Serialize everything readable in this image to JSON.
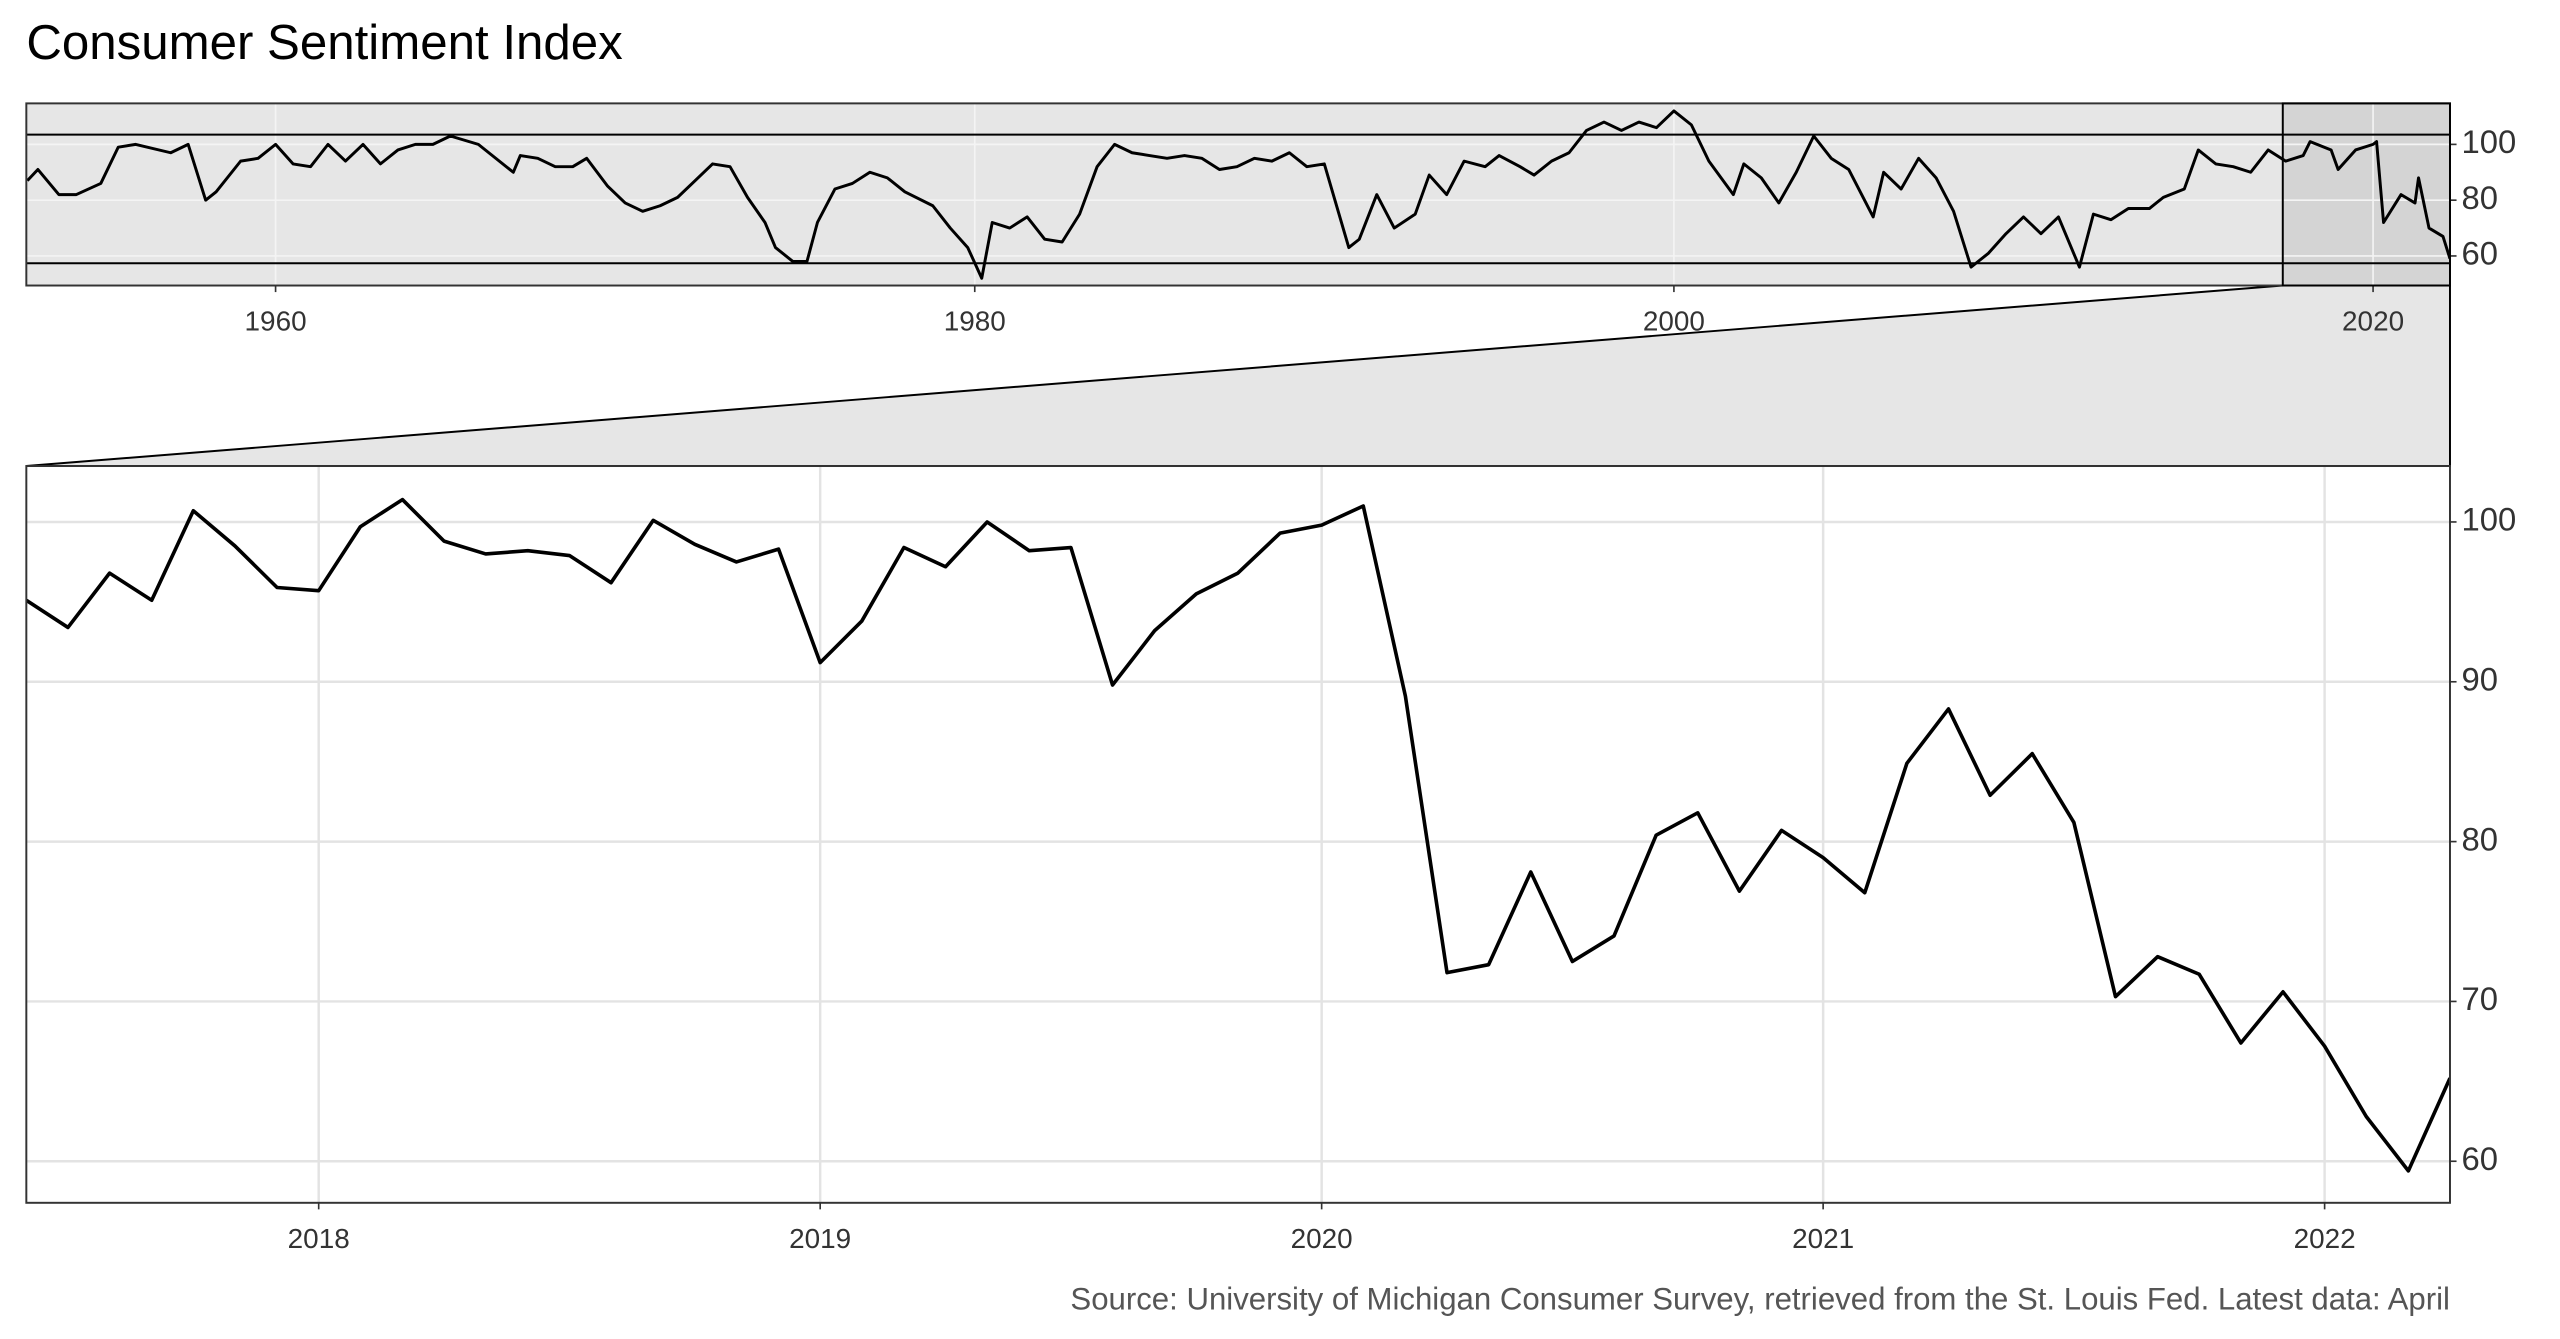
{
  "chart_data": [
    {
      "type": "line",
      "title": "Consumer Sentiment Index",
      "xlim": [
        1952.87,
        2022.2
      ],
      "xticks": [
        1960,
        1980,
        2000,
        2020
      ],
      "ylim": [
        49.4,
        114.7
      ],
      "yticks": [
        60,
        80,
        100
      ],
      "grid": true,
      "series": [
        {
          "name": "Consumer Sentiment",
          "color": "#000000",
          "x": [
            1952.9,
            1953.2,
            1953.8,
            1954.3,
            1955,
            1955.5,
            1956,
            1957,
            1957.5,
            1958,
            1958.3,
            1959,
            1959.5,
            1960,
            1960.5,
            1961,
            1961.5,
            1962,
            1962.5,
            1963,
            1963.5,
            1964,
            1964.5,
            1965,
            1965.8,
            1966.8,
            1967,
            1967.5,
            1968,
            1968.5,
            1968.9,
            1969.5,
            1970,
            1970.5,
            1971,
            1971.5,
            1972,
            1972.5,
            1973,
            1973.5,
            1974,
            1974.3,
            1974.8,
            1975.2,
            1975.5,
            1976,
            1976.5,
            1977,
            1977.5,
            1978,
            1978.8,
            1979.3,
            1979.8,
            1980.2,
            1980.5,
            1981,
            1981.5,
            1982,
            1982.5,
            1983,
            1983.5,
            1984,
            1984.5,
            1985,
            1985.5,
            1986,
            1986.5,
            1987,
            1987.5,
            1988,
            1988.5,
            1989,
            1989.5,
            1990,
            1990.7,
            1991,
            1991.5,
            1992,
            1992.6,
            1993,
            1993.5,
            1994,
            1994.6,
            1995,
            1995.6,
            1996,
            1996.5,
            1997,
            1997.5,
            1998,
            1998.5,
            1999,
            1999.5,
            2000,
            2000.5,
            2001,
            2001.7,
            2002,
            2002.5,
            2003,
            2003.5,
            2004,
            2004.5,
            2005,
            2005.7,
            2006,
            2006.5,
            2007,
            2007.5,
            2008,
            2008.5,
            2009,
            2009.5,
            2010,
            2010.5,
            2011,
            2011.6,
            2012,
            2012.5,
            2013,
            2013.6,
            2014,
            2014.6,
            2015,
            2015.5,
            2016,
            2016.5,
            2017,
            2017.5,
            2018,
            2018.2,
            2018.8,
            2019,
            2019.5,
            2020,
            2020.1,
            2020.3,
            2020.8,
            2021.2,
            2021.3,
            2021.6,
            2022,
            2022.2
          ],
          "values": [
            87,
            91,
            82,
            82,
            86,
            99,
            100,
            97,
            100,
            80,
            83,
            94,
            95,
            100,
            93,
            92,
            100,
            94,
            100,
            93,
            98,
            100,
            100,
            103,
            100,
            90,
            96,
            95,
            92,
            92,
            95,
            85,
            79,
            76,
            78,
            81,
            87,
            93,
            92,
            81,
            72,
            63,
            58,
            58,
            72,
            84,
            86,
            90,
            88,
            83,
            78,
            70,
            63,
            52,
            72,
            70,
            74,
            66,
            65,
            75,
            92,
            100,
            97,
            96,
            95,
            96,
            95,
            91,
            92,
            95,
            94,
            97,
            92,
            93,
            63,
            66,
            82,
            70,
            75,
            89,
            82,
            94,
            92,
            96,
            92,
            89,
            94,
            97,
            105,
            108,
            105,
            108,
            106,
            112,
            107,
            94,
            82,
            93,
            88,
            79,
            90,
            103,
            95,
            91,
            74,
            90,
            84,
            95,
            88,
            76,
            56,
            61,
            68,
            74,
            68,
            74,
            56,
            75,
            73,
            77,
            77,
            81,
            84,
            98,
            93,
            92,
            90,
            98,
            94,
            96,
            101,
            98,
            91,
            98,
            100,
            101,
            72,
            82,
            79,
            88,
            70,
            67,
            59
          ]
        }
      ]
    },
    {
      "type": "line",
      "caption": "Source: University of Michigan Consumer Survey, retrieved from the St. Louis Fed. Latest data: April",
      "xlim": [
        2017.417,
        2022.25
      ],
      "xticks": [
        2018,
        2019,
        2020,
        2021,
        2022
      ],
      "ylim": [
        57.4,
        103.5
      ],
      "yticks": [
        60,
        70,
        80,
        90,
        100
      ],
      "grid": true,
      "series": [
        {
          "name": "Consumer Sentiment",
          "color": "#000000",
          "x": [
            2017.417,
            2017.5,
            2017.583,
            2017.667,
            2017.75,
            2017.833,
            2017.917,
            2018,
            2018.083,
            2018.167,
            2018.25,
            2018.333,
            2018.417,
            2018.5,
            2018.583,
            2018.667,
            2018.75,
            2018.833,
            2018.917,
            2019,
            2019.083,
            2019.167,
            2019.25,
            2019.333,
            2019.417,
            2019.5,
            2019.583,
            2019.667,
            2019.75,
            2019.833,
            2019.917,
            2020,
            2020.083,
            2020.167,
            2020.25,
            2020.333,
            2020.417,
            2020.5,
            2020.583,
            2020.667,
            2020.75,
            2020.833,
            2020.917,
            2021,
            2021.083,
            2021.167,
            2021.25,
            2021.333,
            2021.417,
            2021.5,
            2021.583,
            2021.667,
            2021.75,
            2021.833,
            2021.917,
            2022,
            2022.083,
            2022.167,
            2022.25
          ],
          "values": [
            95.1,
            93.4,
            96.8,
            95.1,
            100.7,
            98.5,
            95.9,
            95.7,
            99.7,
            101.4,
            98.8,
            98.0,
            98.2,
            97.9,
            96.2,
            100.1,
            98.6,
            97.5,
            98.3,
            91.2,
            93.8,
            98.4,
            97.2,
            100.0,
            98.2,
            98.4,
            89.8,
            93.2,
            95.5,
            96.8,
            99.3,
            99.8,
            101.0,
            89.1,
            71.8,
            72.3,
            78.1,
            72.5,
            74.1,
            80.4,
            81.8,
            76.9,
            80.7,
            79.0,
            76.8,
            84.9,
            88.3,
            82.9,
            85.5,
            81.2,
            70.3,
            72.8,
            71.7,
            67.4,
            70.6,
            67.2,
            62.8,
            59.4,
            65.2
          ]
        }
      ]
    }
  ]
}
